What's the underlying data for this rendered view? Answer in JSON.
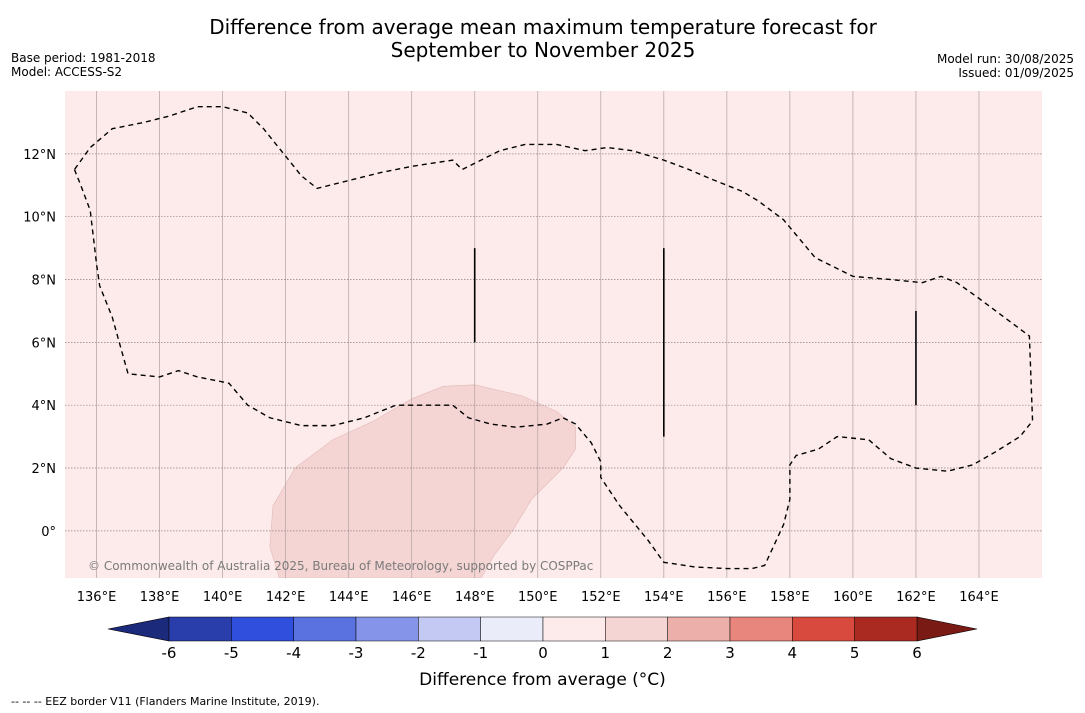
{
  "title": {
    "line1": "Difference from average mean maximum temperature forecast for",
    "line2": "September to November 2025"
  },
  "meta_left": {
    "base_period": "Base period: 1981-2018",
    "model": "Model: ACCESS-S2"
  },
  "meta_right": {
    "model_run": "Model run: 30/08/2025",
    "issued": "Issued: 01/09/2025"
  },
  "map": {
    "lon_range": [
      135,
      166
    ],
    "lat_range": [
      -1.5,
      14
    ],
    "lon_ticks": [
      136,
      138,
      140,
      142,
      144,
      146,
      148,
      150,
      152,
      154,
      156,
      158,
      160,
      162,
      164
    ],
    "lon_labels": [
      "136°E",
      "138°E",
      "140°E",
      "142°E",
      "144°E",
      "146°E",
      "148°E",
      "150°E",
      "152°E",
      "154°E",
      "156°E",
      "158°E",
      "160°E",
      "162°E",
      "164°E"
    ],
    "lat_ticks": [
      0,
      2,
      4,
      6,
      8,
      10,
      12
    ],
    "lat_labels": [
      "0°",
      "2°N",
      "4°N",
      "6°N",
      "8°N",
      "10°N",
      "12°N"
    ],
    "background_color": "#fcebea",
    "anomaly_patch_color": "#f5d5d4",
    "copyright": "© Commonwealth of Australia 2025, Bureau of Meteorology, supported by COSPPac",
    "eez_border": [
      [
        135.3,
        11.5
      ],
      [
        135.5,
        11.0
      ],
      [
        135.8,
        10.2
      ],
      [
        136.0,
        8.5
      ],
      [
        136.1,
        7.8
      ],
      [
        136.5,
        6.8
      ],
      [
        137.0,
        5.0
      ],
      [
        138.0,
        4.9
      ],
      [
        138.6,
        5.1
      ],
      [
        139.2,
        4.9
      ],
      [
        140.2,
        4.7
      ],
      [
        140.8,
        4.0
      ],
      [
        141.5,
        3.6
      ],
      [
        142.5,
        3.35
      ],
      [
        143.5,
        3.35
      ],
      [
        144.5,
        3.6
      ],
      [
        145.5,
        4.0
      ],
      [
        146.5,
        4.0
      ],
      [
        147.3,
        4.0
      ],
      [
        147.8,
        3.6
      ],
      [
        148.5,
        3.4
      ],
      [
        149.3,
        3.3
      ],
      [
        150.3,
        3.4
      ],
      [
        150.8,
        3.6
      ],
      [
        151.2,
        3.4
      ],
      [
        151.7,
        2.8
      ],
      [
        152.0,
        2.2
      ],
      [
        152.0,
        1.7
      ],
      [
        152.6,
        0.8
      ],
      [
        153.5,
        -0.3
      ],
      [
        154.0,
        -1.0
      ],
      [
        155.0,
        -1.15
      ],
      [
        156.0,
        -1.2
      ],
      [
        156.8,
        -1.2
      ],
      [
        157.2,
        -1.1
      ],
      [
        157.8,
        0.2
      ],
      [
        158.0,
        1.0
      ],
      [
        158.0,
        2.1
      ],
      [
        158.2,
        2.4
      ],
      [
        158.9,
        2.6
      ],
      [
        159.5,
        3.0
      ],
      [
        160.5,
        2.9
      ],
      [
        161.2,
        2.3
      ],
      [
        162.0,
        2.0
      ],
      [
        163.0,
        1.9
      ],
      [
        163.8,
        2.1
      ],
      [
        164.5,
        2.5
      ],
      [
        165.3,
        3.0
      ],
      [
        165.7,
        3.5
      ],
      [
        165.6,
        6.2
      ],
      [
        164.8,
        6.8
      ],
      [
        164.0,
        7.4
      ],
      [
        163.3,
        7.9
      ],
      [
        162.8,
        8.1
      ],
      [
        162.2,
        7.9
      ],
      [
        161.2,
        8.0
      ],
      [
        160.0,
        8.1
      ],
      [
        158.8,
        8.7
      ],
      [
        157.8,
        9.9
      ],
      [
        157.0,
        10.5
      ],
      [
        156.5,
        10.8
      ],
      [
        155.5,
        11.2
      ],
      [
        154.8,
        11.5
      ],
      [
        154.0,
        11.8
      ],
      [
        153.0,
        12.1
      ],
      [
        152.2,
        12.2
      ],
      [
        151.5,
        12.1
      ],
      [
        150.6,
        12.3
      ],
      [
        149.6,
        12.3
      ],
      [
        148.8,
        12.1
      ],
      [
        148.0,
        11.7
      ],
      [
        147.6,
        11.5
      ],
      [
        147.3,
        11.8
      ],
      [
        146.0,
        11.6
      ],
      [
        145.0,
        11.4
      ],
      [
        143.8,
        11.1
      ],
      [
        143.0,
        10.9
      ],
      [
        142.5,
        11.3
      ],
      [
        141.3,
        12.8
      ],
      [
        140.8,
        13.3
      ],
      [
        140.0,
        13.5
      ],
      [
        139.2,
        13.5
      ],
      [
        138.3,
        13.2
      ],
      [
        137.5,
        13.0
      ],
      [
        136.5,
        12.8
      ],
      [
        135.8,
        12.2
      ],
      [
        135.3,
        11.5
      ]
    ],
    "eez_segments": [
      [
        [
          148.0,
          9.0
        ],
        [
          148.0,
          6.0
        ]
      ],
      [
        [
          154.0,
          9.0
        ],
        [
          154.0,
          3.0
        ]
      ],
      [
        [
          162.0,
          7.0
        ],
        [
          162.0,
          4.0
        ]
      ]
    ],
    "anomaly_patch": [
      [
        141.8,
        -1.5
      ],
      [
        141.5,
        -0.5
      ],
      [
        141.6,
        0.8
      ],
      [
        142.3,
        2.0
      ],
      [
        143.5,
        2.9
      ],
      [
        144.8,
        3.5
      ],
      [
        146.0,
        4.2
      ],
      [
        147.0,
        4.6
      ],
      [
        148.0,
        4.65
      ],
      [
        149.5,
        4.3
      ],
      [
        150.6,
        3.8
      ],
      [
        151.2,
        3.3
      ],
      [
        151.2,
        2.6
      ],
      [
        150.8,
        2.0
      ],
      [
        149.8,
        1.0
      ],
      [
        149.2,
        0.0
      ],
      [
        148.6,
        -0.8
      ],
      [
        148.2,
        -1.5
      ]
    ]
  },
  "colorbar": {
    "title": "Difference from average (°C)",
    "tick_values": [
      -6,
      -5,
      -4,
      -3,
      -2,
      -1,
      0,
      1,
      2,
      3,
      4,
      5,
      6
    ],
    "tick_labels": [
      "-6",
      "-5",
      "-4",
      "-3",
      "-2",
      "-1",
      "0",
      "1",
      "2",
      "3",
      "4",
      "5",
      "6"
    ],
    "bins": [
      {
        "from": -6,
        "to": -5,
        "color": "#2a3eab"
      },
      {
        "from": -5,
        "to": -4,
        "color": "#2f4fdc"
      },
      {
        "from": -4,
        "to": -3,
        "color": "#5a72e0"
      },
      {
        "from": -3,
        "to": -2,
        "color": "#8594e8"
      },
      {
        "from": -2,
        "to": -1,
        "color": "#c3c9f3"
      },
      {
        "from": -1,
        "to": 0,
        "color": "#eaecfa"
      },
      {
        "from": 0,
        "to": 1,
        "color": "#fcebea"
      },
      {
        "from": 1,
        "to": 2,
        "color": "#f5d5d4"
      },
      {
        "from": 2,
        "to": 3,
        "color": "#edafa9"
      },
      {
        "from": 3,
        "to": 4,
        "color": "#e8857c"
      },
      {
        "from": 4,
        "to": 5,
        "color": "#d84a3e"
      },
      {
        "from": 5,
        "to": 6,
        "color": "#aa2a22"
      }
    ],
    "under_color": "#1c2a7c",
    "over_color": "#7a1a15"
  },
  "footnote": "--  --  -- EEZ border V11 (Flanders Marine Institute, 2019)."
}
